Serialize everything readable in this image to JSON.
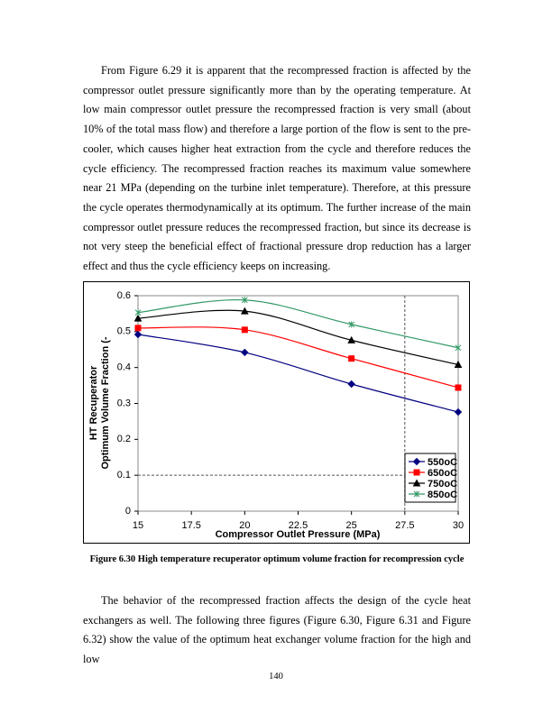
{
  "paragraphs": [
    "From Figure 6.29 it is apparent that the recompressed fraction is affected by the compressor outlet pressure significantly more than by the operating temperature.  At low main compressor outlet pressure the recompressed fraction is very small (about 10% of the total mass flow) and therefore a large portion of the flow is sent to the pre-cooler, which causes higher heat extraction from the cycle and therefore reduces the cycle efficiency.  The recompressed fraction reaches its maximum value somewhere near 21 MPa (depending on the turbine inlet temperature).  Therefore, at this pressure the cycle operates thermodynamically at its optimum.  The further increase of the main compressor outlet pressure reduces the recompressed fraction, but since its decrease is not very steep the beneficial effect of fractional pressure drop reduction has a larger effect and thus the cycle efficiency keeps on increasing.",
    "The behavior of the recompressed fraction affects the design of the cycle heat exchangers as well.  The following three figures (Figure 6.30, Figure 6.31 and Figure 6.32) show the value of the optimum heat exchanger volume fraction for the high and low"
  ],
  "chart_data": {
    "type": "line",
    "x_label": "Compressor Outlet Pressure (MPa)",
    "y_label": [
      "HT Recuperator",
      "Optimum Volume Fraction (-"
    ],
    "x": [
      15,
      20,
      25,
      30
    ],
    "series": [
      {
        "name": "550oC",
        "color": "#000080",
        "marker": "diamond",
        "values": [
          0.492,
          0.442,
          0.354,
          0.276
        ]
      },
      {
        "name": "650oC",
        "color": "#ff0000",
        "marker": "square",
        "values": [
          0.51,
          0.505,
          0.425,
          0.344
        ]
      },
      {
        "name": "750oC",
        "color": "#000000",
        "marker": "triangle",
        "values": [
          0.537,
          0.557,
          0.476,
          0.408
        ]
      },
      {
        "name": "850oC",
        "color": "#339966",
        "marker": "x",
        "values": [
          0.553,
          0.588,
          0.52,
          0.455
        ]
      }
    ],
    "xlim": [
      15,
      30
    ],
    "xticks": [
      15,
      17.5,
      20,
      22.5,
      25,
      27.5,
      30
    ],
    "ylim": [
      0,
      0.6
    ],
    "yticks": [
      0,
      0.1,
      0.2,
      0.3,
      0.4,
      0.5,
      0.6
    ],
    "x_reference_line": 27.5,
    "y_reference_line": 0.1,
    "legend": "lower right"
  },
  "caption": "Figure 6.30 High temperature recuperator optimum volume fraction for recompression cycle",
  "page_number": "140"
}
